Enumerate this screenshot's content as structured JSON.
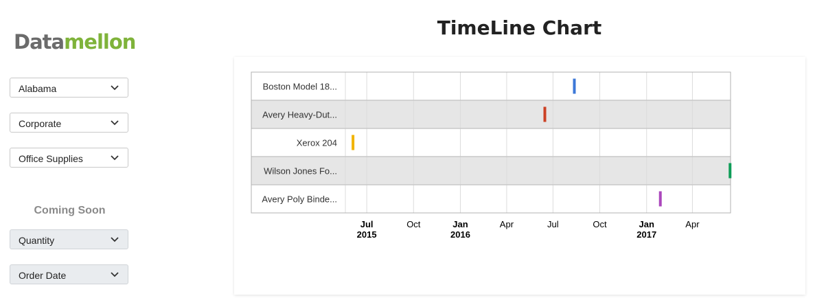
{
  "logo": {
    "part1": "Data",
    "part2": "mellon"
  },
  "filters": [
    {
      "label": "Alabama"
    },
    {
      "label": "Corporate"
    },
    {
      "label": "Office Supplies"
    }
  ],
  "coming_soon": {
    "heading": "Coming Soon",
    "items": [
      {
        "label": "Quantity"
      },
      {
        "label": "Order Date"
      }
    ]
  },
  "chart_data": {
    "type": "timeline",
    "title": "TimeLine Chart",
    "x_range": [
      "2015-05-20",
      "2017-06-15"
    ],
    "ticks": [
      {
        "date": "2015-07-01",
        "label": "Jul",
        "year": "2015"
      },
      {
        "date": "2015-10-01",
        "label": "Oct",
        "year": ""
      },
      {
        "date": "2016-01-01",
        "label": "Jan",
        "year": "2016"
      },
      {
        "date": "2016-04-01",
        "label": "Apr",
        "year": ""
      },
      {
        "date": "2016-07-01",
        "label": "Jul",
        "year": ""
      },
      {
        "date": "2016-10-01",
        "label": "Oct",
        "year": ""
      },
      {
        "date": "2017-01-01",
        "label": "Jan",
        "year": "2017"
      },
      {
        "date": "2017-04-01",
        "label": "Apr",
        "year": ""
      }
    ],
    "rows": [
      {
        "label": "Boston Model 18...",
        "date": "2016-08-12",
        "color": "#3c78d8"
      },
      {
        "label": "Avery Heavy-Dut...",
        "date": "2016-06-15",
        "color": "#cc4125"
      },
      {
        "label": "Xerox 204",
        "date": "2015-06-04",
        "color": "#f1b300"
      },
      {
        "label": "Wilson Jones Fo...",
        "date": "2017-06-14",
        "color": "#0f9d58"
      },
      {
        "label": "Avery Poly Binde...",
        "date": "2017-01-28",
        "color": "#ab47bc"
      }
    ]
  }
}
